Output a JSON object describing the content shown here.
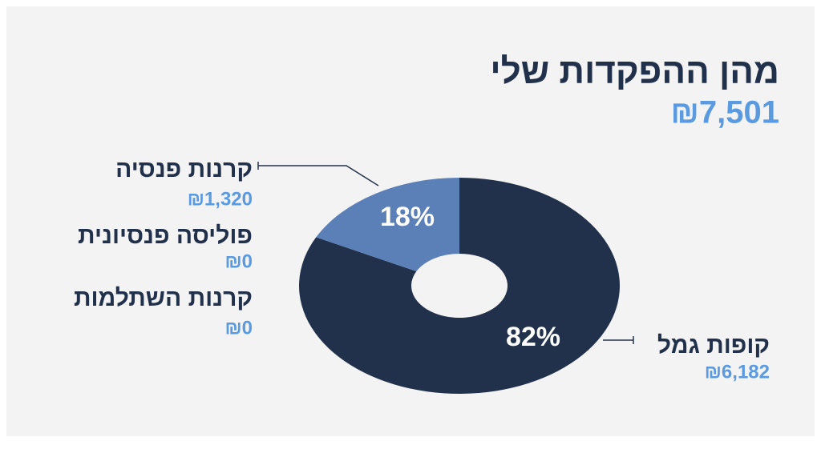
{
  "chart_data": {
    "type": "pie",
    "donut": true,
    "title": "מהן ההפקדות שלי",
    "total": {
      "value": 7501,
      "label": "₪7,501"
    },
    "categories": [
      "קופות גמל",
      "קרנות פנסיה",
      "פוליסה פנסיונית",
      "קרנות השתלמות"
    ],
    "values": [
      6182,
      1320,
      0,
      0
    ],
    "value_labels": [
      "₪6,182",
      "₪1,320",
      "₪0",
      "₪0"
    ],
    "percent_labels": [
      "82%",
      "18%"
    ],
    "colors": [
      "#22314b",
      "#5b80b8",
      "#8fa9d0",
      "#b9c9e2"
    ]
  }
}
